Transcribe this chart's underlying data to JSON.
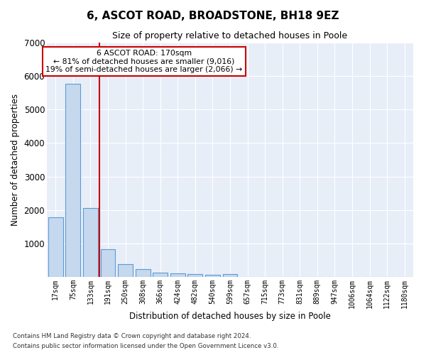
{
  "title": "6, ASCOT ROAD, BROADSTONE, BH18 9EZ",
  "subtitle": "Size of property relative to detached houses in Poole",
  "xlabel": "Distribution of detached houses by size in Poole",
  "ylabel": "Number of detached properties",
  "bin_labels": [
    "17sqm",
    "75sqm",
    "133sqm",
    "191sqm",
    "250sqm",
    "308sqm",
    "366sqm",
    "424sqm",
    "482sqm",
    "540sqm",
    "599sqm",
    "657sqm",
    "715sqm",
    "773sqm",
    "831sqm",
    "889sqm",
    "947sqm",
    "1006sqm",
    "1064sqm",
    "1122sqm",
    "1180sqm"
  ],
  "bar_values": [
    1780,
    5780,
    2060,
    830,
    390,
    230,
    130,
    110,
    80,
    60,
    80,
    0,
    0,
    0,
    0,
    0,
    0,
    0,
    0,
    0,
    0
  ],
  "bar_color": "#c5d8ed",
  "bar_edge_color": "#5b9bd5",
  "vline_color": "#cc0000",
  "annotation_text": "6 ASCOT ROAD: 170sqm\n← 81% of detached houses are smaller (9,016)\n19% of semi-detached houses are larger (2,066) →",
  "annotation_box_color": "#ffffff",
  "annotation_box_edge": "#cc0000",
  "ylim": [
    0,
    7000
  ],
  "yticks": [
    0,
    1000,
    2000,
    3000,
    4000,
    5000,
    6000,
    7000
  ],
  "bg_color": "#e8eef8",
  "footnote1": "Contains HM Land Registry data © Crown copyright and database right 2024.",
  "footnote2": "Contains public sector information licensed under the Open Government Licence v3.0."
}
